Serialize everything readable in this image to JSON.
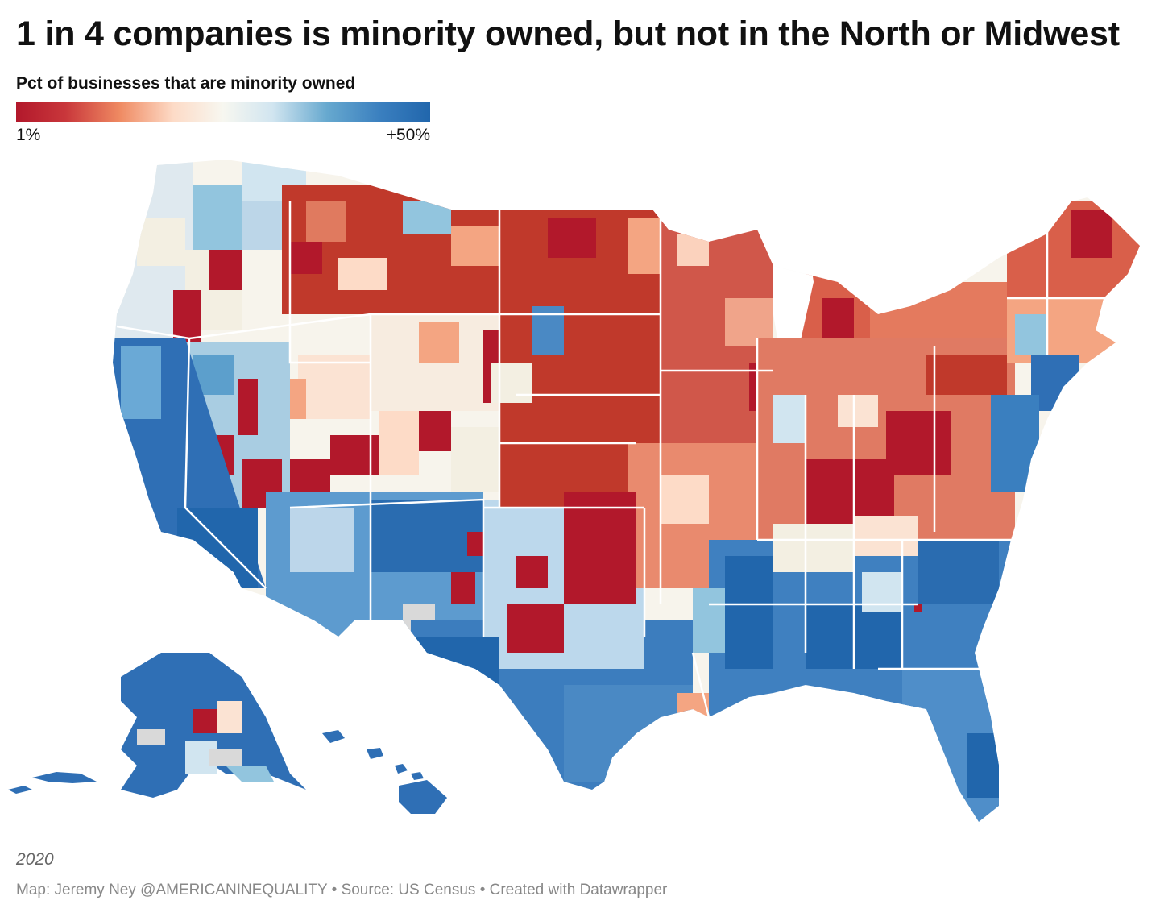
{
  "title": "1 in 4 companies is minority owned, but not in the North or Midwest",
  "legend": {
    "title": "Pct of businesses that are minority owned",
    "min_label": "1%",
    "max_label": "+50%",
    "scale": {
      "min": 1,
      "max": 50,
      "unit": "%",
      "colors": [
        "#b2182b",
        "#d6604d",
        "#f4a582",
        "#fbe8d8",
        "#f7f7f0",
        "#d1e5f0",
        "#92c5de",
        "#4393c3",
        "#2166ac"
      ]
    }
  },
  "map": {
    "type": "choropleth",
    "geography": "US counties",
    "regions_majority_low": [
      "Northern Plains",
      "Midwest",
      "Appalachia",
      "Northeast",
      "Northern Rockies"
    ],
    "regions_majority_high": [
      "California",
      "Southwest",
      "Texas",
      "Deep South",
      "Florida",
      "Alaska",
      "Hawaii"
    ],
    "missing_color": "#d9d9d9"
  },
  "note": "2020",
  "footer": "Map: Jeremy Ney @AMERICANINEQUALITY • Source: US Census • Created with Datawrapper"
}
